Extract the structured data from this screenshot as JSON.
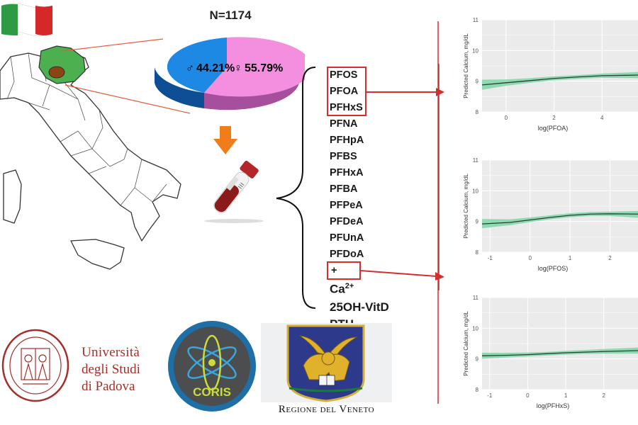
{
  "study": {
    "n_label": "N=1174",
    "sex_split": [
      {
        "symbol": "♂",
        "percent": "44.21%",
        "color": "#1e88e5",
        "value": 44.21
      },
      {
        "symbol": "♀",
        "percent": "55.79%",
        "color": "#f48fe0",
        "value": 55.79
      }
    ]
  },
  "analytes": {
    "pfas_boxed": [
      "PFOS",
      "PFOA",
      "PFHxS"
    ],
    "pfas_other": [
      "PFNA",
      "PFHpA",
      "PFBS",
      "PFHxA",
      "PFBA",
      "PFPeA",
      "PFDeA",
      "PFUnA",
      "PFDoA"
    ],
    "plus": "+",
    "calcium_base": "Ca",
    "calcium_sup": "2+",
    "others": [
      "25OH-VitD",
      "PTH"
    ]
  },
  "colors": {
    "highlight_box": "#d32f2f",
    "arrow_orange": "#f07c1a",
    "ribbon": "#7fd6a6",
    "line": "#2c3e35",
    "italy_highlight": "#4caf50",
    "veneto_area": "#8b4513",
    "padova_red": "#a3302a",
    "coris_blue": "#1d6fa5"
  },
  "chart_data": [
    {
      "type": "line",
      "title": "",
      "xlabel": "log(PFOA)",
      "ylabel": "Predicted Calcium, mg/dL",
      "x_ticks": [
        "0",
        "2",
        "4"
      ],
      "y_ticks": [
        "8",
        "9",
        "10",
        "11"
      ],
      "xlim": [
        -1,
        5.5
      ],
      "ylim": [
        8,
        11
      ],
      "series": [
        {
          "x": [
            -1,
            0,
            1,
            2,
            3,
            4,
            5.5
          ],
          "y": [
            8.88,
            8.95,
            9.02,
            9.09,
            9.14,
            9.18,
            9.2
          ],
          "lower": [
            8.72,
            8.85,
            8.95,
            9.03,
            9.08,
            9.11,
            9.1
          ],
          "upper": [
            9.05,
            9.06,
            9.1,
            9.16,
            9.2,
            9.25,
            9.3
          ]
        }
      ]
    },
    {
      "type": "line",
      "title": "",
      "xlabel": "log(PFOS)",
      "ylabel": "Predicted Calcium, mg/dL",
      "x_ticks": [
        "-1",
        "0",
        "1",
        "2"
      ],
      "y_ticks": [
        "8",
        "9",
        "10",
        "11"
      ],
      "xlim": [
        -1.2,
        2.7
      ],
      "ylim": [
        8,
        11
      ],
      "series": [
        {
          "x": [
            -1.2,
            -0.5,
            0,
            0.5,
            1,
            1.5,
            2,
            2.7
          ],
          "y": [
            8.92,
            8.97,
            9.05,
            9.13,
            9.2,
            9.24,
            9.25,
            9.24
          ],
          "lower": [
            8.78,
            8.88,
            8.98,
            9.07,
            9.14,
            9.18,
            9.18,
            9.12
          ],
          "upper": [
            9.08,
            9.07,
            9.13,
            9.2,
            9.27,
            9.31,
            9.32,
            9.34
          ]
        }
      ]
    },
    {
      "type": "line",
      "title": "",
      "xlabel": "log(PFHxS)",
      "ylabel": "Predicted Calcium, mg/dL",
      "x_ticks": [
        "-1",
        "0",
        "1",
        "2"
      ],
      "y_ticks": [
        "8",
        "9",
        "10",
        "11"
      ],
      "xlim": [
        -1.2,
        2.9
      ],
      "ylim": [
        8,
        11
      ],
      "series": [
        {
          "x": [
            -1.2,
            -0.5,
            0,
            0.5,
            1,
            1.5,
            2,
            2.9
          ],
          "y": [
            9.1,
            9.12,
            9.14,
            9.17,
            9.2,
            9.22,
            9.24,
            9.27
          ],
          "lower": [
            9.0,
            9.05,
            9.08,
            9.11,
            9.14,
            9.16,
            9.17,
            9.17
          ],
          "upper": [
            9.2,
            9.2,
            9.21,
            9.23,
            9.26,
            9.29,
            9.32,
            9.37
          ]
        }
      ]
    }
  ],
  "logos": {
    "padova_line1": "Università",
    "padova_line2": "degli Studi",
    "padova_line3": "di Padova",
    "coris": "CORIS",
    "veneto_caption": "Regione del Veneto"
  }
}
